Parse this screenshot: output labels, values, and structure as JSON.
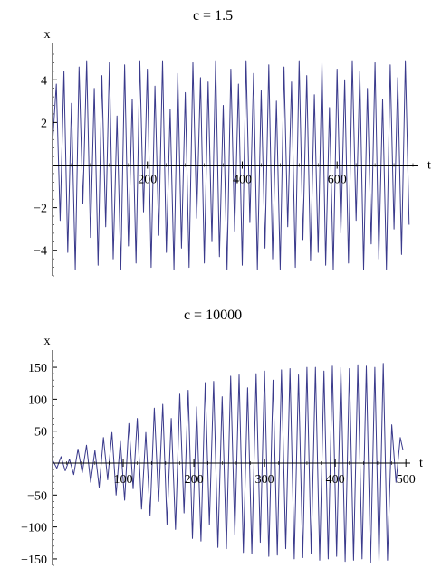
{
  "colors": {
    "series": "#3a3a8c",
    "axis": "#000000"
  },
  "chart_data": [
    {
      "type": "line",
      "title": "c = 1.5",
      "xlabel": "t",
      "ylabel": "x",
      "xlim": [
        0,
        760
      ],
      "ylim": [
        -5.2,
        5.2
      ],
      "grid": false,
      "x_ticks": [
        {
          "value": 200,
          "label": "200"
        },
        {
          "value": 400,
          "label": "400"
        },
        {
          "value": 600,
          "label": "600"
        }
      ],
      "y_ticks": [
        {
          "value": 4,
          "label": "4"
        },
        {
          "value": 2,
          "label": "2"
        },
        {
          "value": -2,
          "label": "−2"
        },
        {
          "value": -4,
          "label": "−4"
        }
      ],
      "series": [
        {
          "x": [
            0,
            8,
            16,
            24,
            32,
            40,
            48,
            56,
            64,
            72,
            80,
            88,
            96,
            104,
            112,
            120,
            128,
            136,
            144,
            152,
            160,
            168,
            176,
            184,
            192,
            200,
            208,
            216,
            224,
            232,
            240,
            248,
            256,
            264,
            272,
            280,
            288,
            296,
            304,
            312,
            320,
            328,
            336,
            344,
            352,
            360,
            368,
            376,
            384,
            392,
            400,
            408,
            416,
            424,
            432,
            440,
            448,
            456,
            464,
            472,
            480,
            488,
            496,
            504,
            512,
            520,
            528,
            536,
            544,
            552,
            560,
            568,
            576,
            584,
            592,
            600,
            608,
            616,
            624,
            632,
            640,
            648,
            656,
            664,
            672,
            680,
            688,
            696,
            704,
            712,
            720,
            728,
            736,
            744,
            752
          ],
          "y": [
            1,
            3.8,
            -2.6,
            4.4,
            -4.1,
            2.9,
            -4.9,
            4.6,
            -1.8,
            4.9,
            -3.4,
            3.6,
            -4.7,
            4.2,
            -2.9,
            4.8,
            -4.4,
            2.3,
            -4.9,
            4.7,
            -3.8,
            3.1,
            -4.6,
            4.9,
            -2.2,
            4.5,
            -4.8,
            3.7,
            -3.3,
            4.9,
            -4.1,
            2.6,
            -4.9,
            4.3,
            -3.9,
            3.4,
            -4.8,
            4.8,
            -2.5,
            4.1,
            -4.6,
            3.9,
            -3.6,
            4.9,
            -4.3,
            2.8,
            -4.9,
            4.5,
            -3.1,
            3.8,
            -4.7,
            4.9,
            -2.7,
            4.3,
            -4.9,
            3.5,
            -3.9,
            4.7,
            -4.4,
            3.0,
            -4.9,
            4.6,
            -2.9,
            3.9,
            -4.8,
            4.9,
            -3.5,
            4.2,
            -4.5,
            3.3,
            -4.1,
            4.8,
            -4.7,
            2.7,
            -4.9,
            4.5,
            -3.2,
            4.0,
            -4.6,
            4.9,
            -2.6,
            4.4,
            -4.9,
            3.6,
            -3.7,
            4.8,
            -4.4,
            3.1,
            -4.9,
            4.7,
            -3.0,
            4.1,
            -4.2,
            4.9,
            -2.8
          ]
        }
      ]
    },
    {
      "type": "line",
      "title": "c = 10000",
      "xlabel": "t",
      "ylabel": "x",
      "xlim": [
        0,
        510
      ],
      "ylim": [
        -160,
        160
      ],
      "grid": false,
      "x_ticks": [
        {
          "value": 100,
          "label": "100"
        },
        {
          "value": 200,
          "label": "200"
        },
        {
          "value": 300,
          "label": "300"
        },
        {
          "value": 400,
          "label": "400"
        },
        {
          "value": 500,
          "label": "500"
        }
      ],
      "y_ticks": [
        {
          "value": 150,
          "label": "150"
        },
        {
          "value": 100,
          "label": "100"
        },
        {
          "value": 50,
          "label": "50"
        },
        {
          "value": -50,
          "label": "−50"
        },
        {
          "value": -100,
          "label": "−100"
        },
        {
          "value": -150,
          "label": "−150"
        }
      ],
      "series": [
        {
          "x": [
            0,
            6,
            12,
            18,
            24,
            30,
            36,
            42,
            48,
            54,
            60,
            66,
            72,
            78,
            84,
            90,
            96,
            102,
            108,
            114,
            120,
            126,
            132,
            138,
            144,
            150,
            156,
            162,
            168,
            174,
            180,
            186,
            192,
            198,
            204,
            210,
            216,
            222,
            228,
            234,
            240,
            246,
            252,
            258,
            264,
            270,
            276,
            282,
            288,
            294,
            300,
            306,
            312,
            318,
            324,
            330,
            336,
            342,
            348,
            354,
            360,
            366,
            372,
            378,
            384,
            390,
            396,
            402,
            408,
            414,
            420,
            426,
            432,
            438,
            444,
            450,
            456,
            462,
            468,
            474,
            480,
            486,
            492,
            496
          ],
          "y": [
            5,
            -8,
            10,
            -12,
            6,
            -18,
            22,
            -15,
            28,
            -30,
            20,
            -38,
            40,
            -26,
            48,
            -50,
            34,
            -58,
            62,
            -40,
            70,
            -72,
            48,
            -82,
            86,
            -60,
            92,
            -96,
            70,
            -104,
            108,
            -78,
            114,
            -118,
            88,
            -122,
            126,
            -96,
            128,
            -132,
            104,
            -134,
            136,
            -112,
            138,
            -140,
            118,
            -142,
            140,
            -124,
            144,
            -146,
            130,
            -144,
            146,
            -134,
            148,
            -150,
            138,
            -148,
            150,
            -142,
            150,
            -152,
            144,
            -150,
            152,
            -146,
            150,
            -154,
            148,
            -152,
            154,
            -150,
            152,
            -156,
            150,
            -154,
            156,
            -152,
            60,
            -30,
            40,
            20
          ]
        }
      ]
    }
  ]
}
